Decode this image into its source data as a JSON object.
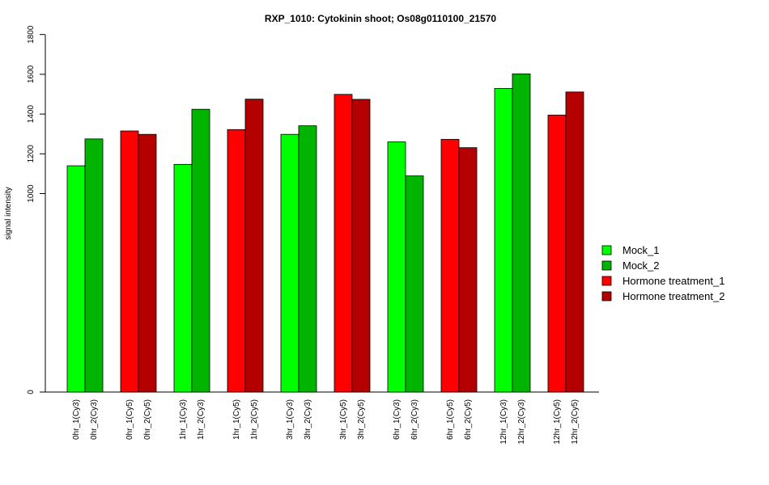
{
  "chart_data": {
    "type": "bar",
    "title": "RXP_1010: Cytokinin shoot; Os08g0110100_21570",
    "xlabel": "",
    "ylabel": "signal intensity",
    "y_ticks": [
      0,
      1000,
      1200,
      1400,
      1600,
      1800
    ],
    "y_ticks_labels": [
      "0",
      "1000",
      "1200",
      "1400",
      "1600",
      "1800"
    ],
    "y_axis_break": "ticks between 0 and 1000 omitted; 1000–1800 expanded",
    "legend_position": "right",
    "series": [
      {
        "name": "Mock_1",
        "color": "#00ff00"
      },
      {
        "name": "Mock_2",
        "color": "#00b400"
      },
      {
        "name": "Hormone treatment_1",
        "color": "#ff0000"
      },
      {
        "name": "Hormone treatment_2",
        "color": "#b40000"
      }
    ],
    "bars": [
      {
        "label": "0hr_1(Cy3)",
        "value": 1140,
        "series": 0
      },
      {
        "label": "0hr_2(Cy3)",
        "value": 1275,
        "series": 1
      },
      {
        "label": "0hr_1(Cy5)",
        "value": 1315,
        "series": 2
      },
      {
        "label": "0hr_2(Cy5)",
        "value": 1298,
        "series": 3
      },
      {
        "label": "1hr_1(Cy3)",
        "value": 1147,
        "series": 0
      },
      {
        "label": "1hr_2(Cy3)",
        "value": 1424,
        "series": 1
      },
      {
        "label": "1hr_1(Cy5)",
        "value": 1322,
        "series": 2
      },
      {
        "label": "1hr_2(Cy5)",
        "value": 1475,
        "series": 3
      },
      {
        "label": "3hr_1(Cy3)",
        "value": 1298,
        "series": 0
      },
      {
        "label": "3hr_2(Cy3)",
        "value": 1341,
        "series": 1
      },
      {
        "label": "3hr_1(Cy5)",
        "value": 1499,
        "series": 2
      },
      {
        "label": "3hr_2(Cy5)",
        "value": 1474,
        "series": 3
      },
      {
        "label": "6hr_1(Cy3)",
        "value": 1260,
        "series": 0
      },
      {
        "label": "6hr_2(Cy3)",
        "value": 1089,
        "series": 1
      },
      {
        "label": "6hr_1(Cy5)",
        "value": 1273,
        "series": 2
      },
      {
        "label": "6hr_2(Cy5)",
        "value": 1231,
        "series": 3
      },
      {
        "label": "12hr_1(Cy3)",
        "value": 1529,
        "series": 0
      },
      {
        "label": "12hr_2(Cy3)",
        "value": 1602,
        "series": 1
      },
      {
        "label": "12hr_1(Cy5)",
        "value": 1395,
        "series": 2
      },
      {
        "label": "12hr_2(Cy5)",
        "value": 1511,
        "series": 3
      }
    ]
  }
}
